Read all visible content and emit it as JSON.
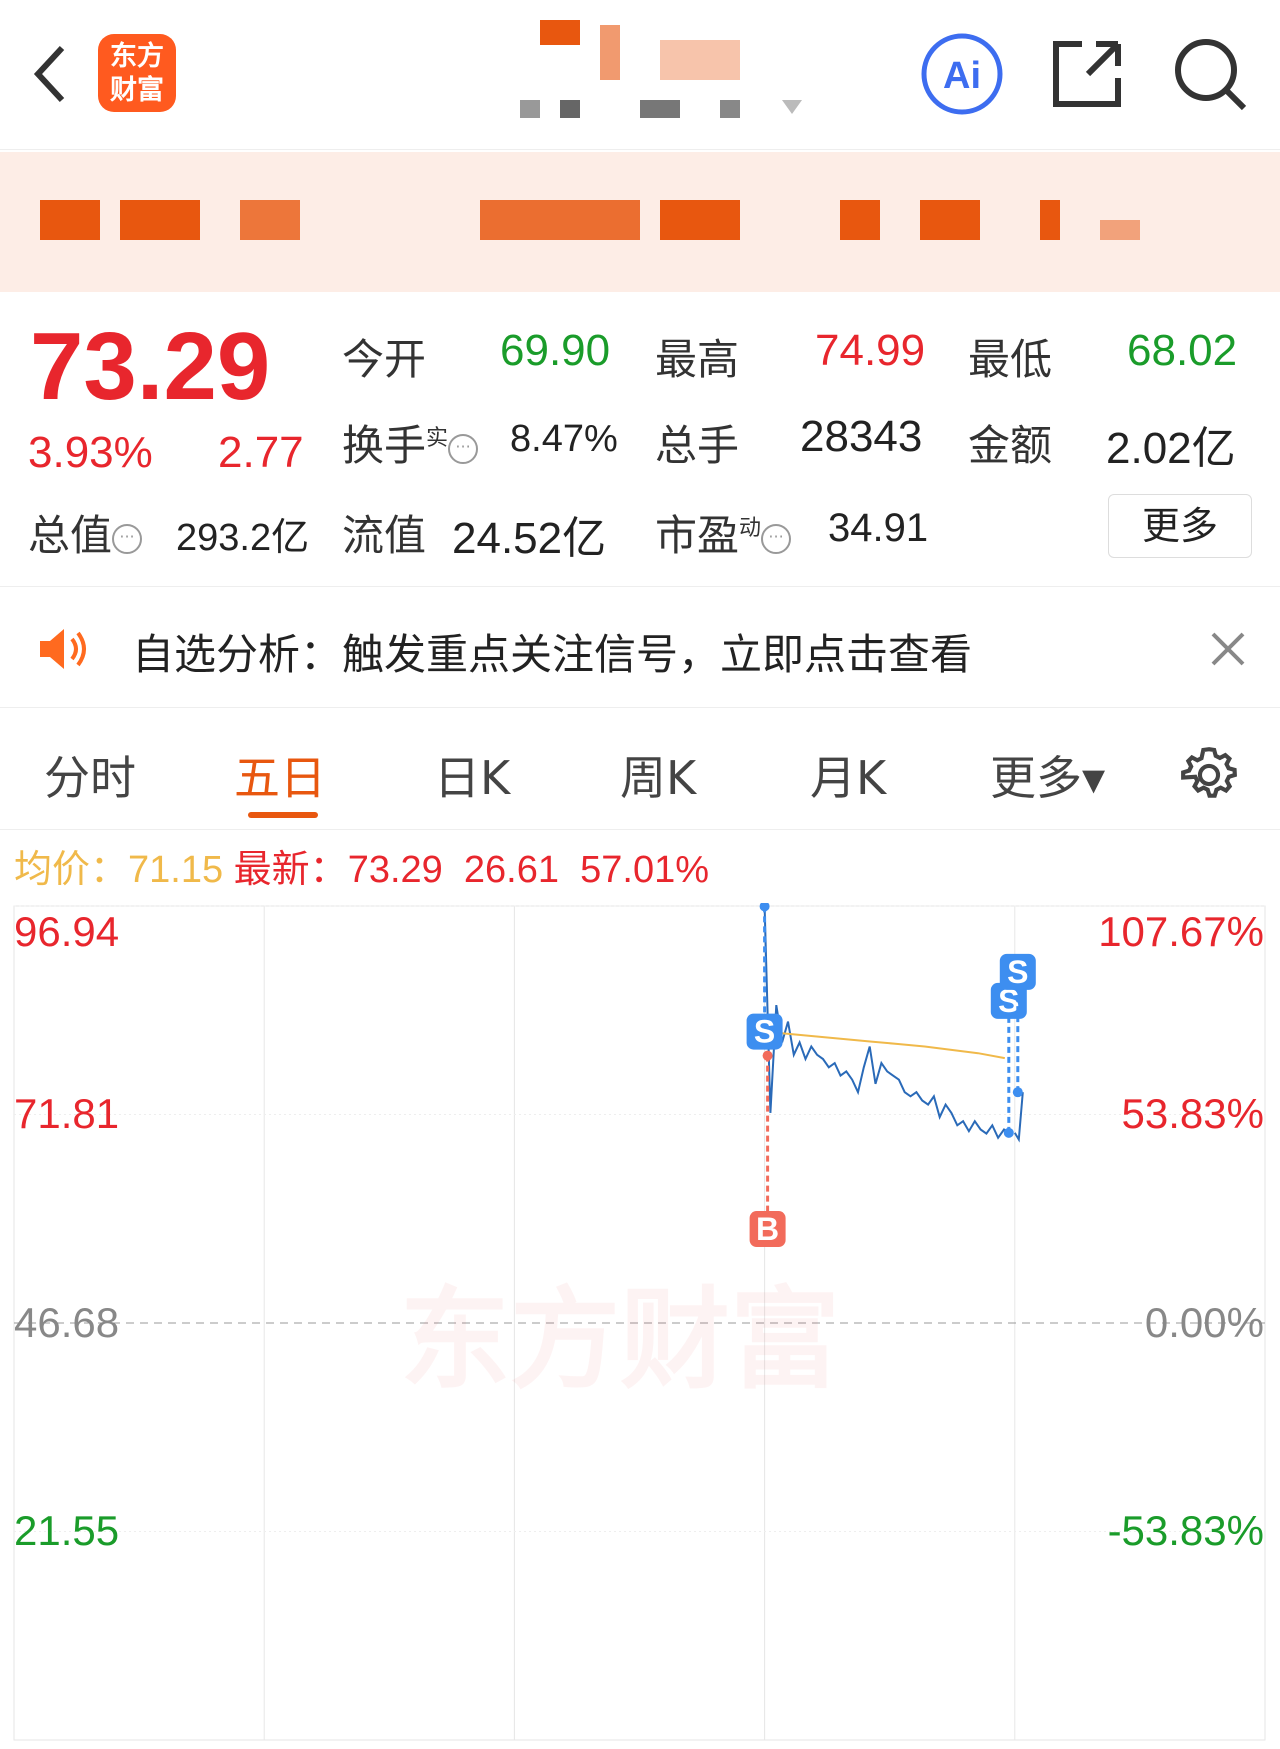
{
  "header": {
    "back_icon": "chevron-left-icon",
    "logo_text": [
      "东方",
      "财富"
    ],
    "ai_label": "Ai",
    "share_icon": "share-icon",
    "search_icon": "search-icon"
  },
  "quote": {
    "price": "73.29",
    "change_pct": "3.93%",
    "change": "2.77",
    "open_label": "今开",
    "open": "69.90",
    "high_label": "最高",
    "high": "74.99",
    "low_label": "最低",
    "low": "68.02",
    "turnover_label": "换手",
    "turnover_sup": "实",
    "turnover": "8.47%",
    "volume_label": "总手",
    "volume": "28343",
    "amount_label": "金额",
    "amount": "2.02亿",
    "mktcap_label": "总值",
    "mktcap": "293.2亿",
    "float_label": "流值",
    "float": "24.52亿",
    "pe_label": "市盈",
    "pe_sup": "动",
    "pe": "34.91",
    "more_label": "更多"
  },
  "notice": {
    "text": "自选分析：触发重点关注信号，立即点击查看",
    "icon": "speaker-icon",
    "close_icon": "close-icon"
  },
  "tabs": [
    {
      "label": "分时"
    },
    {
      "label": "五日",
      "active": true
    },
    {
      "label": "日K"
    },
    {
      "label": "周K"
    },
    {
      "label": "月K"
    },
    {
      "label": "更多▾"
    }
  ],
  "settings_icon": "gear-icon",
  "legend": {
    "avg_label": "均价：",
    "avg": "71.15",
    "latest_label": "最新：",
    "latest": "73.29",
    "change": "26.61",
    "change_pct": "57.01%"
  },
  "watermark": "东方财富",
  "colors": {
    "up": "#e8262d",
    "down": "#1a9c2a",
    "accent": "#e8570f",
    "price_line": "#2a6ab8",
    "avg_line": "#f0b94a",
    "sell_marker": "#3d8ef0",
    "buy_marker": "#f26b5b"
  },
  "chart_data": {
    "type": "line",
    "days": 5,
    "y_ticks_left": [
      "96.94",
      "71.81",
      "46.68",
      "21.55"
    ],
    "y_ticks_right": [
      "107.67%",
      "53.83%",
      "0.00%",
      "-53.83%"
    ],
    "ylim": [
      -3.59,
      96.94
    ],
    "prev_close": 46.68,
    "series": [
      {
        "role": "price",
        "day": 4,
        "values": [
          96.9,
          72,
          85,
          80.5,
          83,
          79,
          80.5,
          78.5,
          80,
          79,
          78.5,
          77.5,
          78,
          76.5,
          77,
          76,
          74.5,
          77.5,
          80,
          75.5,
          78,
          77,
          76.5,
          76,
          74.5,
          74,
          74.5,
          73.5,
          73,
          74,
          71.5,
          73,
          72,
          70.5,
          71,
          69.8,
          71,
          70,
          69.5,
          70.5,
          69,
          70,
          69.6
        ]
      },
      {
        "role": "price",
        "day": 5,
        "values": [
          69.6,
          68.8,
          74.5
        ]
      },
      {
        "role": "avg",
        "day": 4,
        "values": [
          81.8,
          81.5,
          81.2,
          80.9,
          80.6,
          80.3,
          80,
          79.6,
          79.2,
          78.6
        ]
      }
    ],
    "markers": [
      {
        "type": "S",
        "day": 4,
        "price": 96.9
      },
      {
        "type": "B",
        "day": 4,
        "price": 78.9
      },
      {
        "type": "S",
        "day": 5,
        "price": 69.6
      },
      {
        "type": "S",
        "day": 5,
        "price": 74.5
      }
    ]
  }
}
